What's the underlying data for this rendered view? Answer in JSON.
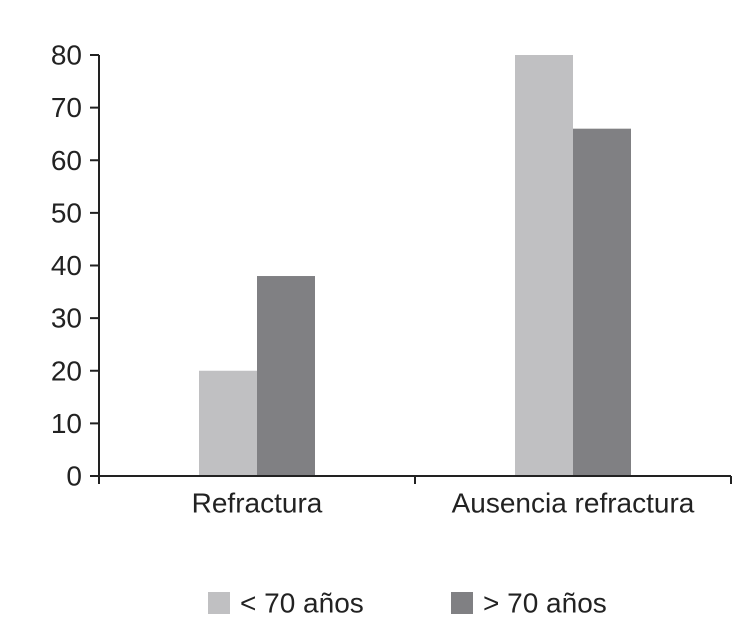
{
  "chart_data": {
    "type": "bar",
    "categories": [
      "Refractura",
      "Ausencia refractura"
    ],
    "series": [
      {
        "name": "< 70 años",
        "values": [
          20,
          80
        ],
        "color": "#c0c0c2"
      },
      {
        "name": "> 70 años",
        "values": [
          38,
          66
        ],
        "color": "#808083"
      }
    ],
    "ylim": [
      0,
      80
    ],
    "yticks": [
      0,
      10,
      20,
      30,
      40,
      50,
      60,
      70,
      80
    ],
    "grid": false,
    "legend_position": "bottom",
    "axis_color": "#222222"
  }
}
